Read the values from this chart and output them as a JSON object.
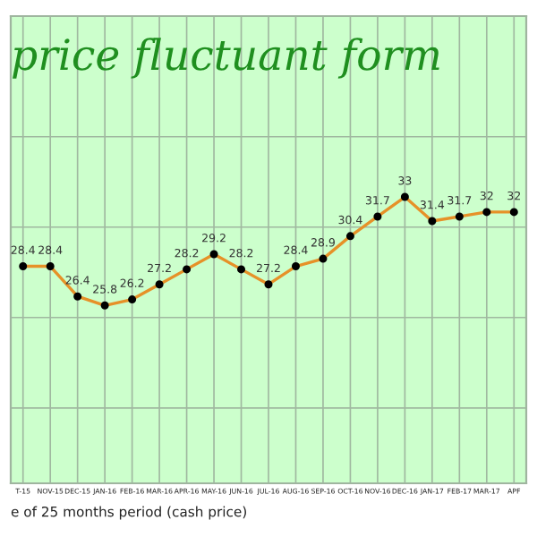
{
  "chart_data": {
    "type": "line",
    "title": "price fluctuant form",
    "xlabel": "e of 25 months period (cash price)",
    "categories": [
      "T-15",
      "NOV-15",
      "DEC-15",
      "JAN-16",
      "FEB-16",
      "MAR-16",
      "APR-16",
      "MAY-16",
      "JUN-16",
      "JUL-16",
      "AUG-16",
      "SEP-16",
      "OCT-16",
      "NOV-16",
      "DEC-16",
      "JAN-17",
      "FEB-17",
      "MAR-17",
      "APF"
    ],
    "series": [
      {
        "color": "#e69128",
        "values": [
          28.4,
          28.4,
          26.4,
          25.8,
          26.2,
          27.2,
          28.2,
          29.2,
          28.2,
          27.2,
          28.4,
          28.9,
          30.4,
          31.7,
          33,
          31.4,
          31.7,
          32,
          32
        ]
      }
    ],
    "data_labels": true,
    "ylim": [
      14,
      45
    ],
    "yticks": [
      {
        "value": 19,
        "label": null
      },
      {
        "value": 25,
        "label": null
      },
      {
        "value": 31,
        "label": null
      },
      {
        "value": 37,
        "label": null
      }
    ],
    "grid": true,
    "legend": false,
    "marker": "circle",
    "line_style": "solid",
    "tick_labels": "x"
  }
}
